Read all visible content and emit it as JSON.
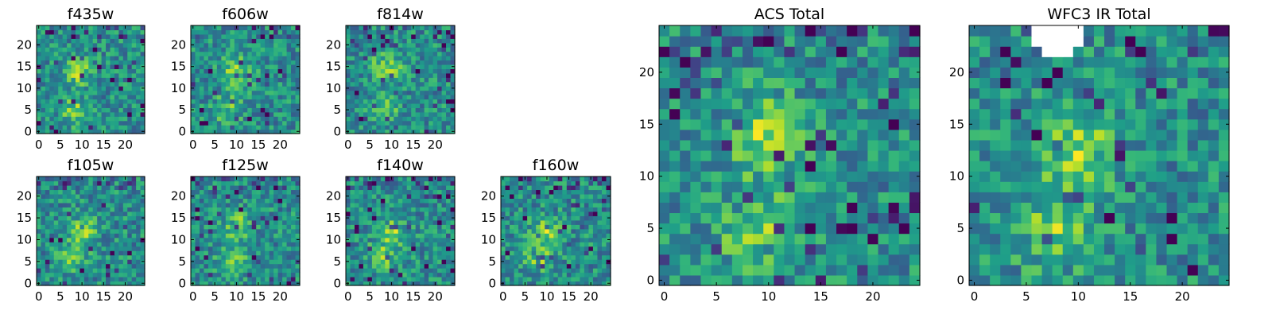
{
  "chart_data": [
    {
      "type": "heatmap",
      "title": "f435w",
      "xticks": [
        "0",
        "5",
        "10",
        "15",
        "20"
      ],
      "yticks": [
        "0",
        "5",
        "10",
        "15",
        "20"
      ],
      "xlim": [
        -0.5,
        24.5
      ],
      "ylim": [
        -0.5,
        24.5
      ],
      "grid": false,
      "colormap": "viridis",
      "bright_centers": [
        {
          "x": 9,
          "y": 14
        },
        {
          "x": 8,
          "y": 5
        }
      ]
    },
    {
      "type": "heatmap",
      "title": "f606w",
      "xticks": [
        "0",
        "5",
        "10",
        "15",
        "20"
      ],
      "yticks": [
        "0",
        "5",
        "10",
        "15",
        "20"
      ],
      "xlim": [
        -0.5,
        24.5
      ],
      "ylim": [
        -0.5,
        24.5
      ],
      "grid": false,
      "colormap": "viridis",
      "bright_centers": [
        {
          "x": 10,
          "y": 14
        },
        {
          "x": 8,
          "y": 5
        }
      ]
    },
    {
      "type": "heatmap",
      "title": "f814w",
      "xticks": [
        "0",
        "5",
        "10",
        "15",
        "20"
      ],
      "yticks": [
        "0",
        "5",
        "10",
        "15",
        "20"
      ],
      "xlim": [
        -0.5,
        24.5
      ],
      "ylim": [
        -0.5,
        24.5
      ],
      "grid": false,
      "colormap": "viridis",
      "bright_centers": [
        {
          "x": 9,
          "y": 15
        },
        {
          "x": 8,
          "y": 5
        }
      ]
    },
    {
      "type": "heatmap",
      "title": "f105w",
      "xticks": [
        "0",
        "5",
        "10",
        "15",
        "20"
      ],
      "yticks": [
        "0",
        "5",
        "10",
        "15",
        "20"
      ],
      "xlim": [
        -0.5,
        24.5
      ],
      "ylim": [
        -0.5,
        24.5
      ],
      "grid": false,
      "colormap": "viridis",
      "bright_centers": [
        {
          "x": 10,
          "y": 12
        },
        {
          "x": 8,
          "y": 6
        }
      ]
    },
    {
      "type": "heatmap",
      "title": "f125w",
      "xticks": [
        "0",
        "5",
        "10",
        "15",
        "20"
      ],
      "yticks": [
        "0",
        "5",
        "10",
        "15",
        "20"
      ],
      "xlim": [
        -0.5,
        24.5
      ],
      "ylim": [
        -0.5,
        24.5
      ],
      "grid": false,
      "colormap": "viridis",
      "bright_centers": [
        {
          "x": 10,
          "y": 13
        },
        {
          "x": 9,
          "y": 5
        }
      ]
    },
    {
      "type": "heatmap",
      "title": "f140w",
      "xticks": [
        "0",
        "5",
        "10",
        "15",
        "20"
      ],
      "yticks": [
        "0",
        "5",
        "10",
        "15",
        "20"
      ],
      "xlim": [
        -0.5,
        24.5
      ],
      "ylim": [
        -0.5,
        24.5
      ],
      "grid": false,
      "colormap": "viridis",
      "bright_centers": [
        {
          "x": 10,
          "y": 12
        },
        {
          "x": 8,
          "y": 6
        }
      ]
    },
    {
      "type": "heatmap",
      "title": "f160w",
      "xticks": [
        "0",
        "5",
        "10",
        "15",
        "20"
      ],
      "yticks": [
        "0",
        "5",
        "10",
        "15",
        "20"
      ],
      "xlim": [
        -0.5,
        24.5
      ],
      "ylim": [
        -0.5,
        24.5
      ],
      "grid": false,
      "colormap": "viridis",
      "bright_centers": [
        {
          "x": 10,
          "y": 12
        },
        {
          "x": 8,
          "y": 6
        }
      ]
    },
    {
      "type": "heatmap",
      "title": "ACS Total",
      "xticks": [
        "0",
        "5",
        "10",
        "15",
        "20"
      ],
      "yticks": [
        "0",
        "5",
        "10",
        "15",
        "20"
      ],
      "xlim": [
        -0.5,
        24.5
      ],
      "ylim": [
        -0.5,
        24.5
      ],
      "grid": false,
      "colormap": "viridis",
      "bright_centers": [
        {
          "x": 10,
          "y": 14
        },
        {
          "x": 9,
          "y": 5
        }
      ]
    },
    {
      "type": "heatmap",
      "title": "WFC3 IR Total",
      "xticks": [
        "0",
        "5",
        "10",
        "15",
        "20"
      ],
      "yticks": [
        "0",
        "5",
        "10",
        "15",
        "20"
      ],
      "xlim": [
        -0.5,
        24.5
      ],
      "ylim": [
        -0.5,
        24.5
      ],
      "grid": false,
      "colormap": "viridis",
      "bright_centers": [
        {
          "x": 10,
          "y": 13
        },
        {
          "x": 8,
          "y": 5
        }
      ],
      "masked_region": "top edge near x 6-10 (white)"
    }
  ]
}
